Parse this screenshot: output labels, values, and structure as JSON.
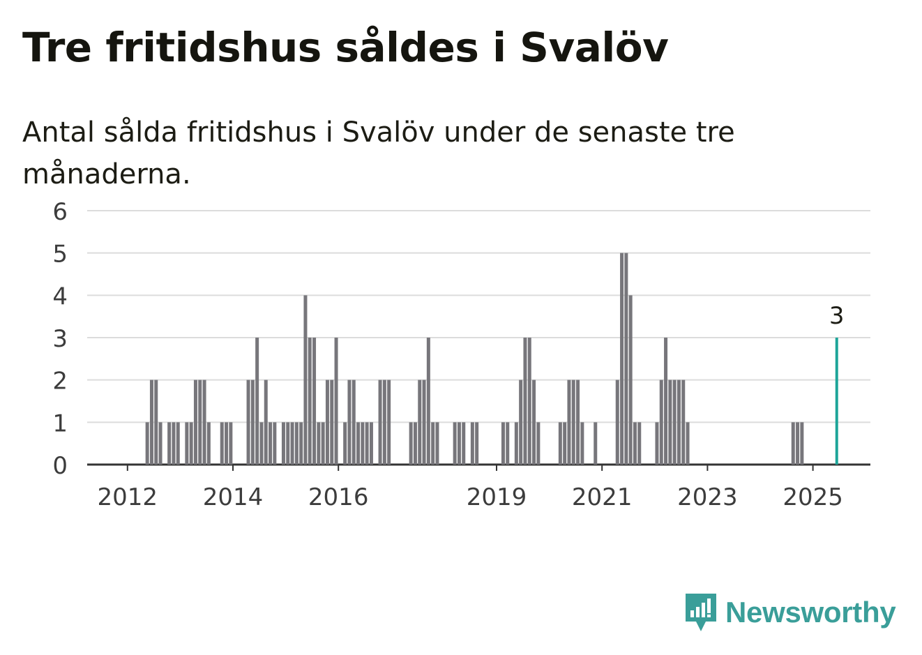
{
  "title": "Tre fritidshus såldes i Svalöv",
  "subtitle": "Antal sålda fritidshus i Svalöv under de senaste tre månaderna.",
  "brand": {
    "name": "Newsworthy",
    "icon": "newsworthy-logo-icon",
    "color": "#3a9e99"
  },
  "chart_data": {
    "type": "bar",
    "title": "Tre fritidshus såldes i Svalöv",
    "xlabel": "",
    "ylabel": "",
    "ylim": [
      0,
      6
    ],
    "yticks": [
      0,
      1,
      2,
      3,
      4,
      5,
      6
    ],
    "xticks": [
      "2012",
      "2014",
      "2016",
      "2019",
      "2021",
      "2023",
      "2025"
    ],
    "grid": true,
    "x_start": "2011-04",
    "bar_color": "#77767b",
    "highlight_color": "#1da599",
    "highlight_label": "3",
    "categories": [
      "2011-04",
      "2011-05",
      "2011-06",
      "2011-07",
      "2011-08",
      "2011-09",
      "2011-10",
      "2011-11",
      "2011-12",
      "2012-01",
      "2012-02",
      "2012-03",
      "2012-04",
      "2012-05",
      "2012-06",
      "2012-07",
      "2012-08",
      "2012-09",
      "2012-10",
      "2012-11",
      "2012-12",
      "2013-01",
      "2013-02",
      "2013-03",
      "2013-04",
      "2013-05",
      "2013-06",
      "2013-07",
      "2013-08",
      "2013-09",
      "2013-10",
      "2013-11",
      "2013-12",
      "2014-01",
      "2014-02",
      "2014-03",
      "2014-04",
      "2014-05",
      "2014-06",
      "2014-07",
      "2014-08",
      "2014-09",
      "2014-10",
      "2014-11",
      "2014-12",
      "2015-01",
      "2015-02",
      "2015-03",
      "2015-04",
      "2015-05",
      "2015-06",
      "2015-07",
      "2015-08",
      "2015-09",
      "2015-10",
      "2015-11",
      "2015-12",
      "2016-01",
      "2016-02",
      "2016-03",
      "2016-04",
      "2016-05",
      "2016-06",
      "2016-07",
      "2016-08",
      "2016-09",
      "2016-10",
      "2016-11",
      "2016-12",
      "2017-01",
      "2017-02",
      "2017-03",
      "2017-04",
      "2017-05",
      "2017-06",
      "2017-07",
      "2017-08",
      "2017-09",
      "2017-10",
      "2017-11",
      "2017-12",
      "2018-01",
      "2018-02",
      "2018-03",
      "2018-04",
      "2018-05",
      "2018-06",
      "2018-07",
      "2018-08",
      "2018-09",
      "2018-10",
      "2018-11",
      "2018-12",
      "2019-01",
      "2019-02",
      "2019-03",
      "2019-04",
      "2019-05",
      "2019-06",
      "2019-07",
      "2019-08",
      "2019-09",
      "2019-10",
      "2019-11",
      "2019-12",
      "2020-01",
      "2020-02",
      "2020-03",
      "2020-04",
      "2020-05",
      "2020-06",
      "2020-07",
      "2020-08",
      "2020-09",
      "2020-10",
      "2020-11",
      "2020-12",
      "2021-01",
      "2021-02",
      "2021-03",
      "2021-04",
      "2021-05",
      "2021-06",
      "2021-07",
      "2021-08",
      "2021-09",
      "2021-10",
      "2021-11",
      "2021-12",
      "2022-01",
      "2022-02",
      "2022-03",
      "2022-04",
      "2022-05",
      "2022-06",
      "2022-07",
      "2022-08",
      "2022-09",
      "2022-10",
      "2022-11",
      "2022-12",
      "2023-01",
      "2023-02",
      "2023-03",
      "2023-04",
      "2023-05",
      "2023-06",
      "2023-07",
      "2023-08",
      "2023-09",
      "2023-10",
      "2023-11",
      "2023-12",
      "2024-01",
      "2024-02",
      "2024-03",
      "2024-04",
      "2024-05",
      "2024-06",
      "2024-07",
      "2024-08",
      "2024-09",
      "2024-10",
      "2024-11",
      "2024-12",
      "2025-01",
      "2025-02",
      "2025-03",
      "2025-04",
      "2025-05",
      "2025-06"
    ],
    "values": [
      0,
      0,
      0,
      0,
      0,
      0,
      0,
      0,
      0,
      0,
      0,
      0,
      0,
      1,
      2,
      2,
      1,
      0,
      1,
      1,
      1,
      0,
      1,
      1,
      2,
      2,
      2,
      1,
      0,
      0,
      1,
      1,
      1,
      0,
      0,
      0,
      2,
      2,
      3,
      1,
      2,
      1,
      1,
      0,
      1,
      1,
      1,
      1,
      1,
      4,
      3,
      3,
      1,
      1,
      2,
      2,
      3,
      0,
      1,
      2,
      2,
      1,
      1,
      1,
      1,
      0,
      2,
      2,
      2,
      0,
      0,
      0,
      0,
      1,
      1,
      2,
      2,
      3,
      1,
      1,
      0,
      0,
      0,
      1,
      1,
      1,
      0,
      1,
      1,
      0,
      0,
      0,
      0,
      0,
      1,
      1,
      0,
      1,
      2,
      3,
      3,
      2,
      1,
      0,
      0,
      0,
      0,
      1,
      1,
      2,
      2,
      2,
      1,
      0,
      0,
      1,
      0,
      0,
      0,
      0,
      2,
      5,
      5,
      4,
      1,
      1,
      0,
      0,
      0,
      1,
      2,
      3,
      2,
      2,
      2,
      2,
      1,
      0,
      0,
      0,
      0,
      0,
      0,
      0,
      0,
      0,
      0,
      0,
      0,
      0,
      0,
      0,
      0,
      0,
      0,
      0,
      0,
      0,
      0,
      0,
      1,
      1,
      1,
      0,
      0,
      0,
      0,
      0,
      0,
      0,
      3
    ]
  }
}
